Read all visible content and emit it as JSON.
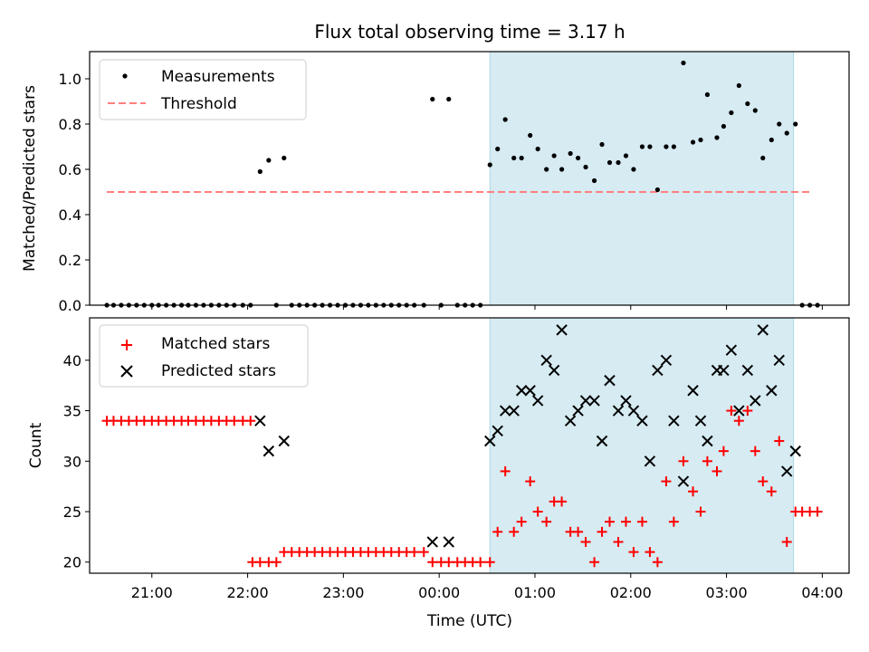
{
  "title": "Flux total observing time = 3.17 h",
  "chart_data": [
    {
      "type": "scatter",
      "title": "Flux total observing time = 3.17 h",
      "xlabel": "",
      "ylabel": "Matched/Predicted stars",
      "xlim_hours": [
        20.35,
        28.28
      ],
      "ylim": [
        0.0,
        1.12
      ],
      "yticks": [
        "0.0",
        "0.2",
        "0.4",
        "0.6",
        "0.8",
        "1.0"
      ],
      "highlight_span_hours": [
        24.53,
        27.7
      ],
      "highlight_color": "#add8e6",
      "legend": {
        "placement": "upper left",
        "entries": [
          "Measurements",
          "Threshold"
        ]
      },
      "threshold": {
        "name": "Threshold",
        "value": 0.5,
        "x_hours": [
          20.53,
          27.9
        ],
        "color": "#ff7f7f",
        "style": "dashed"
      },
      "series": [
        {
          "name": "Measurements",
          "marker": "dot",
          "color": "#000000",
          "points": [
            [
              20.53,
              0.0
            ],
            [
              20.6,
              0.0
            ],
            [
              20.68,
              0.0
            ],
            [
              20.76,
              0.0
            ],
            [
              20.84,
              0.0
            ],
            [
              20.92,
              0.0
            ],
            [
              21.0,
              0.0
            ],
            [
              21.07,
              0.0
            ],
            [
              21.15,
              0.0
            ],
            [
              21.23,
              0.0
            ],
            [
              21.31,
              0.0
            ],
            [
              21.38,
              0.0
            ],
            [
              21.46,
              0.0
            ],
            [
              21.54,
              0.0
            ],
            [
              21.62,
              0.0
            ],
            [
              21.7,
              0.0
            ],
            [
              21.78,
              0.0
            ],
            [
              21.86,
              0.0
            ],
            [
              21.95,
              0.0
            ],
            [
              22.03,
              0.0
            ],
            [
              22.13,
              0.59
            ],
            [
              22.22,
              0.64
            ],
            [
              22.3,
              0.0
            ],
            [
              22.38,
              0.65
            ],
            [
              22.46,
              0.0
            ],
            [
              22.54,
              0.0
            ],
            [
              22.62,
              0.0
            ],
            [
              22.7,
              0.0
            ],
            [
              22.78,
              0.0
            ],
            [
              22.86,
              0.0
            ],
            [
              22.94,
              0.0
            ],
            [
              23.02,
              0.0
            ],
            [
              23.1,
              0.0
            ],
            [
              23.18,
              0.0
            ],
            [
              23.26,
              0.0
            ],
            [
              23.34,
              0.0
            ],
            [
              23.42,
              0.0
            ],
            [
              23.5,
              0.0
            ],
            [
              23.58,
              0.0
            ],
            [
              23.66,
              0.0
            ],
            [
              23.74,
              0.0
            ],
            [
              23.84,
              0.0
            ],
            [
              23.93,
              0.91
            ],
            [
              24.02,
              0.0
            ],
            [
              24.1,
              0.91
            ],
            [
              24.19,
              0.0
            ],
            [
              24.27,
              0.0
            ],
            [
              24.35,
              0.0
            ],
            [
              24.43,
              0.0
            ],
            [
              24.53,
              0.62
            ],
            [
              24.61,
              0.69
            ],
            [
              24.69,
              0.82
            ],
            [
              24.78,
              0.65
            ],
            [
              24.86,
              0.65
            ],
            [
              24.95,
              0.75
            ],
            [
              25.03,
              0.69
            ],
            [
              25.12,
              0.6
            ],
            [
              25.2,
              0.66
            ],
            [
              25.28,
              0.6
            ],
            [
              25.37,
              0.67
            ],
            [
              25.45,
              0.65
            ],
            [
              25.53,
              0.61
            ],
            [
              25.62,
              0.55
            ],
            [
              25.7,
              0.71
            ],
            [
              25.78,
              0.63
            ],
            [
              25.87,
              0.63
            ],
            [
              25.95,
              0.66
            ],
            [
              26.03,
              0.6
            ],
            [
              26.12,
              0.7
            ],
            [
              26.2,
              0.7
            ],
            [
              26.28,
              0.51
            ],
            [
              26.37,
              0.7
            ],
            [
              26.45,
              0.7
            ],
            [
              26.55,
              1.07
            ],
            [
              26.65,
              0.72
            ],
            [
              26.73,
              0.73
            ],
            [
              26.8,
              0.93
            ],
            [
              26.9,
              0.74
            ],
            [
              26.97,
              0.79
            ],
            [
              27.05,
              0.85
            ],
            [
              27.13,
              0.97
            ],
            [
              27.22,
              0.89
            ],
            [
              27.3,
              0.86
            ],
            [
              27.38,
              0.65
            ],
            [
              27.47,
              0.73
            ],
            [
              27.55,
              0.8
            ],
            [
              27.63,
              0.76
            ],
            [
              27.72,
              0.8
            ],
            [
              27.79,
              0.0
            ],
            [
              27.87,
              0.0
            ],
            [
              27.95,
              0.0
            ]
          ]
        }
      ]
    },
    {
      "type": "scatter",
      "title": "",
      "xlabel": "Time (UTC)",
      "ylabel": "Count",
      "xlim_hours": [
        20.35,
        28.28
      ],
      "ylim": [
        18.9,
        44.2
      ],
      "yticks": [
        "20",
        "25",
        "30",
        "35",
        "40"
      ],
      "xticks": [
        "21:00",
        "22:00",
        "23:00",
        "00:00",
        "01:00",
        "02:00",
        "03:00",
        "04:00"
      ],
      "xtick_hours": [
        21,
        22,
        23,
        24,
        25,
        26,
        27,
        28
      ],
      "highlight_span_hours": [
        24.53,
        27.7
      ],
      "highlight_color": "#add8e6",
      "legend": {
        "placement": "upper left",
        "entries": [
          "Matched stars",
          "Predicted stars"
        ]
      },
      "series": [
        {
          "name": "Matched stars",
          "marker": "plus",
          "color": "#ff0000",
          "points": [
            [
              20.53,
              34
            ],
            [
              20.6,
              34
            ],
            [
              20.68,
              34
            ],
            [
              20.76,
              34
            ],
            [
              20.84,
              34
            ],
            [
              20.92,
              34
            ],
            [
              21.0,
              34
            ],
            [
              21.07,
              34
            ],
            [
              21.15,
              34
            ],
            [
              21.23,
              34
            ],
            [
              21.31,
              34
            ],
            [
              21.38,
              34
            ],
            [
              21.46,
              34
            ],
            [
              21.54,
              34
            ],
            [
              21.62,
              34
            ],
            [
              21.7,
              34
            ],
            [
              21.78,
              34
            ],
            [
              21.86,
              34
            ],
            [
              21.95,
              34
            ],
            [
              22.03,
              34
            ],
            [
              22.05,
              20
            ],
            [
              22.13,
              20
            ],
            [
              22.22,
              20
            ],
            [
              22.3,
              20
            ],
            [
              22.38,
              21
            ],
            [
              22.46,
              21
            ],
            [
              22.54,
              21
            ],
            [
              22.62,
              21
            ],
            [
              22.7,
              21
            ],
            [
              22.78,
              21
            ],
            [
              22.86,
              21
            ],
            [
              22.94,
              21
            ],
            [
              23.02,
              21
            ],
            [
              23.1,
              21
            ],
            [
              23.18,
              21
            ],
            [
              23.26,
              21
            ],
            [
              23.34,
              21
            ],
            [
              23.42,
              21
            ],
            [
              23.5,
              21
            ],
            [
              23.58,
              21
            ],
            [
              23.66,
              21
            ],
            [
              23.74,
              21
            ],
            [
              23.84,
              21
            ],
            [
              23.93,
              20
            ],
            [
              24.02,
              20
            ],
            [
              24.1,
              20
            ],
            [
              24.19,
              20
            ],
            [
              24.27,
              20
            ],
            [
              24.35,
              20
            ],
            [
              24.43,
              20
            ],
            [
              24.53,
              20
            ],
            [
              24.61,
              23
            ],
            [
              24.69,
              29
            ],
            [
              24.78,
              23
            ],
            [
              24.86,
              24
            ],
            [
              24.95,
              28
            ],
            [
              25.03,
              25
            ],
            [
              25.12,
              24
            ],
            [
              25.2,
              26
            ],
            [
              25.28,
              26
            ],
            [
              25.37,
              23
            ],
            [
              25.45,
              23
            ],
            [
              25.53,
              22
            ],
            [
              25.62,
              20
            ],
            [
              25.7,
              23
            ],
            [
              25.78,
              24
            ],
            [
              25.87,
              22
            ],
            [
              25.95,
              24
            ],
            [
              26.03,
              21
            ],
            [
              26.12,
              24
            ],
            [
              26.2,
              21
            ],
            [
              26.28,
              20
            ],
            [
              26.37,
              28
            ],
            [
              26.45,
              24
            ],
            [
              26.55,
              30
            ],
            [
              26.65,
              27
            ],
            [
              26.73,
              25
            ],
            [
              26.8,
              30
            ],
            [
              26.9,
              29
            ],
            [
              26.97,
              31
            ],
            [
              27.05,
              35
            ],
            [
              27.13,
              34
            ],
            [
              27.22,
              35
            ],
            [
              27.3,
              31
            ],
            [
              27.38,
              28
            ],
            [
              27.47,
              27
            ],
            [
              27.55,
              32
            ],
            [
              27.63,
              22
            ],
            [
              27.72,
              25
            ],
            [
              27.79,
              25
            ],
            [
              27.87,
              25
            ],
            [
              27.95,
              25
            ]
          ]
        },
        {
          "name": "Predicted stars",
          "marker": "x",
          "color": "#000000",
          "points": [
            [
              22.13,
              34
            ],
            [
              22.22,
              31
            ],
            [
              22.38,
              32
            ],
            [
              23.93,
              22
            ],
            [
              24.1,
              22
            ],
            [
              24.53,
              32
            ],
            [
              24.61,
              33
            ],
            [
              24.69,
              35
            ],
            [
              24.78,
              35
            ],
            [
              24.86,
              37
            ],
            [
              24.95,
              37
            ],
            [
              25.03,
              36
            ],
            [
              25.12,
              40
            ],
            [
              25.2,
              39
            ],
            [
              25.28,
              43
            ],
            [
              25.37,
              34
            ],
            [
              25.45,
              35
            ],
            [
              25.53,
              36
            ],
            [
              25.62,
              36
            ],
            [
              25.7,
              32
            ],
            [
              25.78,
              38
            ],
            [
              25.87,
              35
            ],
            [
              25.95,
              36
            ],
            [
              26.03,
              35
            ],
            [
              26.12,
              34
            ],
            [
              26.2,
              30
            ],
            [
              26.28,
              39
            ],
            [
              26.37,
              40
            ],
            [
              26.45,
              34
            ],
            [
              26.55,
              28
            ],
            [
              26.65,
              37
            ],
            [
              26.73,
              34
            ],
            [
              26.8,
              32
            ],
            [
              26.9,
              39
            ],
            [
              26.97,
              39
            ],
            [
              27.05,
              41
            ],
            [
              27.13,
              35
            ],
            [
              27.22,
              39
            ],
            [
              27.3,
              36
            ],
            [
              27.38,
              43
            ],
            [
              27.47,
              37
            ],
            [
              27.55,
              40
            ],
            [
              27.63,
              29
            ],
            [
              27.72,
              31
            ]
          ]
        }
      ]
    }
  ]
}
